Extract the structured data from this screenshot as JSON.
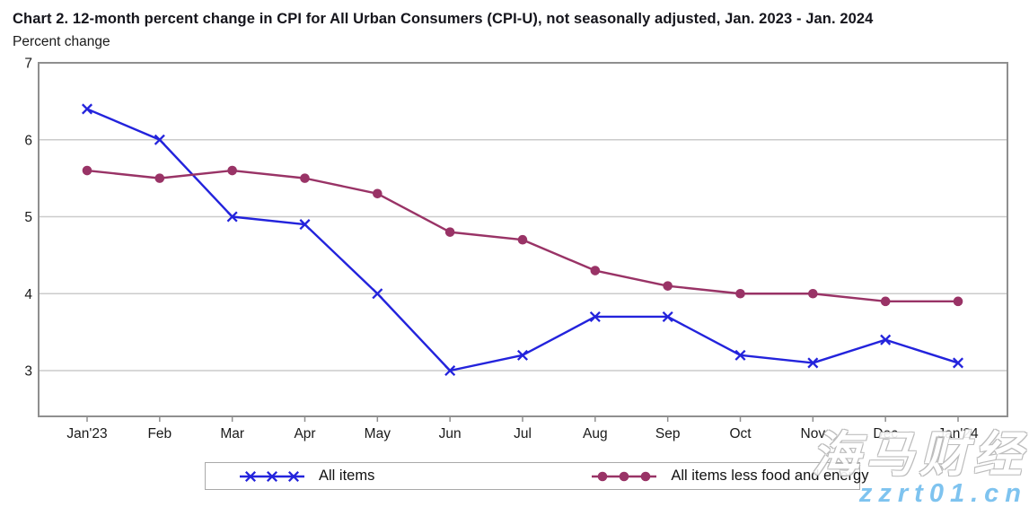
{
  "title": "Chart 2. 12-month percent change in CPI for All Urban Consumers (CPI-U), not seasonally adjusted, Jan. 2023 - Jan. 2024",
  "subtitle": "Percent change",
  "chart_data": {
    "type": "line",
    "title": "Chart 2. 12-month percent change in CPI for All Urban Consumers (CPI-U), not seasonally adjusted, Jan. 2023 - Jan. 2024",
    "ylabel": "Percent change",
    "categories": [
      "Jan'23",
      "Feb",
      "Mar",
      "Apr",
      "May",
      "Jun",
      "Jul",
      "Aug",
      "Sep",
      "Oct",
      "Nov",
      "Dec",
      "Jan'24"
    ],
    "series": [
      {
        "name": "All items",
        "marker": "x",
        "color": "#2323dc",
        "values": [
          6.4,
          6.0,
          5.0,
          4.9,
          4.0,
          3.0,
          3.2,
          3.7,
          3.7,
          3.2,
          3.1,
          3.4,
          3.1
        ]
      },
      {
        "name": "All items less food and energy",
        "marker": "circle",
        "color": "#993366",
        "values": [
          5.6,
          5.5,
          5.6,
          5.5,
          5.3,
          4.8,
          4.7,
          4.3,
          4.1,
          4.0,
          4.0,
          3.9,
          3.9
        ]
      }
    ],
    "yticks": [
      7,
      6,
      5,
      4,
      3
    ],
    "ylim": [
      2.4,
      7
    ],
    "grid": true,
    "legend_position": "bottom"
  },
  "colors": {
    "plot_border": "#8f8f8f",
    "gridline": "#cbcbcb",
    "axis_text": "#1a1a1a",
    "watermark_blue": "#7ec3ef"
  },
  "watermark": {
    "line1": "海马财经",
    "line2": "zzrt01.cn"
  }
}
